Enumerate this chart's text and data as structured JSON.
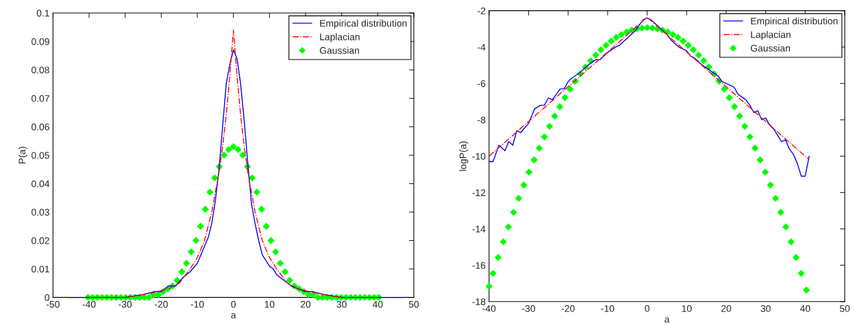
{
  "chart_data": [
    {
      "type": "line",
      "xlabel": "a",
      "ylabel": "P(a)",
      "xlim": [
        -50,
        50
      ],
      "xticks": [
        -50,
        -40,
        -30,
        -20,
        -10,
        0,
        10,
        20,
        30,
        40,
        50
      ],
      "ylim": [
        0,
        0.1
      ],
      "yticks": [
        0,
        0.01,
        0.02,
        0.03,
        0.04,
        0.05,
        0.06,
        0.07,
        0.08,
        0.09,
        0.1
      ],
      "legend": "top right",
      "grid": false,
      "series": [
        {
          "name": "Empirical distribution",
          "color": "#0000ff",
          "line_style": "solid",
          "x": [
            -46,
            -40,
            -30,
            -25,
            -22,
            -20,
            -18,
            -16,
            -14,
            -12,
            -10,
            -8,
            -7,
            -6,
            -5,
            -4,
            -3,
            -2,
            -1,
            0,
            1,
            2,
            3,
            4,
            5,
            6,
            7,
            8,
            9,
            10,
            11,
            12,
            14,
            16,
            18,
            20,
            22,
            25,
            30,
            40,
            47
          ],
          "values": [
            0,
            0,
            0,
            0.001,
            0.002,
            0.002,
            0.004,
            0.004,
            0.007,
            0.009,
            0.012,
            0.018,
            0.021,
            0.026,
            0.034,
            0.045,
            0.06,
            0.075,
            0.082,
            0.087,
            0.084,
            0.075,
            0.062,
            0.047,
            0.033,
            0.026,
            0.02,
            0.015,
            0.013,
            0.011,
            0.01,
            0.008,
            0.006,
            0.004,
            0.003,
            0.002,
            0.002,
            0.001,
            0,
            0,
            0
          ]
        },
        {
          "name": "Laplacian",
          "color": "#ff0000",
          "line_style": "dashdot",
          "x": [
            -40,
            -35,
            -30,
            -25,
            -21,
            -18,
            -15,
            -12,
            -10,
            -8,
            -6,
            -4,
            -3,
            -2,
            -1,
            0,
            1,
            2,
            3,
            4,
            6,
            8,
            10,
            12,
            15,
            18,
            21,
            25,
            30,
            35,
            40
          ],
          "values": [
            0,
            0,
            0,
            0.001,
            0.002,
            0.003,
            0.005,
            0.01,
            0.014,
            0.02,
            0.03,
            0.044,
            0.053,
            0.064,
            0.078,
            0.094,
            0.078,
            0.064,
            0.053,
            0.044,
            0.03,
            0.02,
            0.014,
            0.01,
            0.005,
            0.003,
            0.002,
            0.001,
            0,
            0,
            0
          ]
        },
        {
          "name": "Gaussian",
          "type": "scatter",
          "color": "#00ff00",
          "marker": "diamond",
          "x": [
            -40.3,
            -39,
            -37.7,
            -36.4,
            -35.1,
            -33.8,
            -32.5,
            -31.2,
            -29.9,
            -28.6,
            -27.3,
            -26,
            -24.7,
            -23.4,
            -22.1,
            -20.8,
            -19.5,
            -18.2,
            -16.9,
            -15.6,
            -14.3,
            -13,
            -11.7,
            -10.4,
            -9.1,
            -7.8,
            -6.5,
            -5.2,
            -3.9,
            -2.6,
            -1.3,
            0,
            1.3,
            2.6,
            3.9,
            5.2,
            6.5,
            7.8,
            9.1,
            10.4,
            11.7,
            13,
            14.3,
            15.6,
            16.9,
            18.2,
            19.5,
            20.8,
            22.1,
            23.4,
            24.7,
            26,
            27.3,
            28.6,
            29.9,
            31.2,
            32.5,
            33.8,
            35.1,
            36.4,
            37.7,
            39,
            40.3
          ],
          "values": [
            0,
            0,
            0,
            0,
            0,
            0,
            0,
            0,
            0,
            0,
            0,
            0,
            0,
            0,
            0.001,
            0.001,
            0.002,
            0.003,
            0.004,
            0.006,
            0.009,
            0.012,
            0.016,
            0.02,
            0.025,
            0.031,
            0.037,
            0.042,
            0.046,
            0.05,
            0.052,
            0.053,
            0.052,
            0.05,
            0.046,
            0.042,
            0.037,
            0.031,
            0.025,
            0.02,
            0.016,
            0.012,
            0.009,
            0.006,
            0.004,
            0.003,
            0.002,
            0.001,
            0.001,
            0,
            0,
            0,
            0,
            0,
            0,
            0,
            0,
            0,
            0,
            0,
            0,
            0,
            0
          ]
        }
      ]
    },
    {
      "type": "line",
      "xlabel": "a",
      "ylabel": "logP(a)",
      "xlim": [
        -40,
        50
      ],
      "xticks": [
        -40,
        -30,
        -20,
        -10,
        0,
        10,
        20,
        30,
        40,
        50
      ],
      "ylim": [
        -18,
        -2
      ],
      "yticks": [
        -18,
        -16,
        -14,
        -12,
        -10,
        -8,
        -6,
        -4,
        -2
      ],
      "legend": "top right",
      "grid": false,
      "series": [
        {
          "name": "Empirical distribution",
          "color": "#0000ff",
          "line_style": "solid",
          "x": [
            -40,
            -39,
            -37.5,
            -36,
            -35,
            -34,
            -33,
            -32,
            -30,
            -28.5,
            -27,
            -26,
            -25,
            -24,
            -22,
            -21,
            -20,
            -19,
            -17,
            -15,
            -13,
            -12,
            -10,
            -8,
            -7,
            -5,
            -3,
            -1,
            0,
            1,
            3,
            5,
            6,
            8,
            10,
            11,
            12,
            14,
            16,
            18,
            19,
            20,
            22,
            23,
            25,
            26,
            27,
            28,
            29,
            30,
            31,
            32,
            34,
            35,
            36,
            37,
            38,
            39,
            40,
            41
          ],
          "values": [
            -10.3,
            -10.3,
            -9.4,
            -9.7,
            -9.2,
            -9.4,
            -8.6,
            -8.7,
            -8.2,
            -7.4,
            -7.2,
            -7.2,
            -6.8,
            -6.9,
            -6.3,
            -6.3,
            -5.9,
            -5.7,
            -5.4,
            -5.0,
            -4.7,
            -4.7,
            -4.3,
            -4.0,
            -3.9,
            -3.5,
            -3.1,
            -2.5,
            -2.4,
            -2.5,
            -2.9,
            -3.3,
            -3.6,
            -4.0,
            -4.2,
            -4.5,
            -4.6,
            -5.0,
            -5.3,
            -5.6,
            -5.9,
            -6.0,
            -6.2,
            -6.6,
            -6.9,
            -7.2,
            -7.6,
            -7.5,
            -8.0,
            -7.9,
            -8.3,
            -8.5,
            -9.2,
            -9.1,
            -9.6,
            -9.9,
            -10.4,
            -11.1,
            -11.1,
            -10.0
          ]
        },
        {
          "name": "Laplacian",
          "color": "#ff0000",
          "line_style": "dashdot",
          "x": [
            -40,
            -35,
            -30,
            -25,
            -21,
            -18,
            -15,
            -12,
            -10,
            -8,
            -6,
            -4,
            -3,
            -2,
            -1,
            0,
            1,
            2,
            3,
            4,
            6,
            8,
            10,
            12,
            15,
            18,
            21,
            25,
            30,
            35,
            41
          ],
          "values": [
            -10.0,
            -9.05,
            -8.09,
            -7.14,
            -6.37,
            -5.8,
            -5.23,
            -4.65,
            -4.27,
            -3.89,
            -3.51,
            -3.12,
            -2.93,
            -2.74,
            -2.55,
            -2.36,
            -2.55,
            -2.74,
            -2.93,
            -3.12,
            -3.51,
            -3.89,
            -4.27,
            -4.65,
            -5.23,
            -5.8,
            -6.37,
            -7.14,
            -8.09,
            -9.05,
            -10.2
          ]
        },
        {
          "name": "Gaussian",
          "type": "scatter",
          "color": "#00ff00",
          "marker": "diamond",
          "x": [
            -40,
            -39,
            -37.7,
            -36.4,
            -35.1,
            -33.8,
            -32.5,
            -31.2,
            -29.9,
            -28.6,
            -27.3,
            -26,
            -24.7,
            -23.4,
            -22.1,
            -20.8,
            -19.5,
            -18.2,
            -16.9,
            -15.6,
            -14.3,
            -13,
            -11.7,
            -10.4,
            -9.1,
            -7.8,
            -6.5,
            -5.2,
            -3.9,
            -2.6,
            -1.3,
            0,
            1.3,
            2.6,
            3.9,
            5.2,
            6.5,
            7.8,
            9.1,
            10.4,
            11.7,
            13,
            14.3,
            15.6,
            16.9,
            18.2,
            19.5,
            20.8,
            22.1,
            23.4,
            24.7,
            26,
            27.3,
            28.6,
            29.9,
            31.2,
            32.5,
            33.8,
            35.1,
            36.4,
            37.7,
            39,
            40.3
          ],
          "values": [
            -17.16,
            -16.45,
            -15.57,
            -14.71,
            -13.89,
            -13.09,
            -12.32,
            -11.59,
            -10.88,
            -10.21,
            -9.56,
            -8.94,
            -8.36,
            -7.8,
            -7.28,
            -6.78,
            -6.31,
            -5.88,
            -5.47,
            -5.1,
            -4.75,
            -4.44,
            -4.15,
            -3.9,
            -3.67,
            -3.47,
            -3.31,
            -3.17,
            -3.07,
            -2.99,
            -2.95,
            -2.93,
            -2.95,
            -2.99,
            -3.07,
            -3.17,
            -3.31,
            -3.47,
            -3.67,
            -3.9,
            -4.15,
            -4.44,
            -4.75,
            -5.1,
            -5.47,
            -5.88,
            -6.31,
            -6.78,
            -7.28,
            -7.8,
            -8.36,
            -8.94,
            -9.56,
            -10.21,
            -10.88,
            -11.59,
            -12.32,
            -13.09,
            -13.89,
            -14.71,
            -15.57,
            -16.45,
            -17.37
          ]
        }
      ]
    }
  ]
}
